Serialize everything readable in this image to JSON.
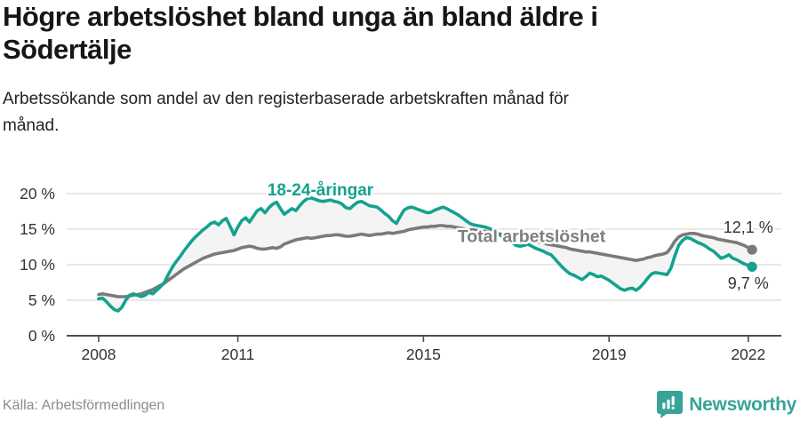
{
  "header": {
    "title_lines": [
      "Högre arbetslöshet bland unga än bland äldre i",
      "Södertälje"
    ],
    "subtitle_lines": [
      "Arbetssökande som andel av den registerbaserade arbetskraften månad för",
      "månad."
    ]
  },
  "footer": {
    "source": "Källa: Arbetsförmedlingen",
    "brand_name": "Newsworthy"
  },
  "colors": {
    "young_series": "#14a28e",
    "total_series": "#7a7a7a",
    "total_label": "#7f7f82",
    "value_label": "#333333",
    "grid": "#dadada",
    "axis": "#4d4d4d",
    "axis_text": "#333333",
    "fill_between": "#f4f4f4",
    "brand_teal": "#38a39a",
    "background": "#ffffff"
  },
  "chart_data": {
    "type": "line",
    "title": "Högre arbetslöshet bland unga än bland äldre i Södertälje",
    "subtitle": "Arbetssökande som andel av den registerbaserade arbetskraften månad för månad.",
    "x_start_year": 2008.0,
    "x_step_years": 0.08333,
    "xlim": [
      2007.6,
      2022.75
    ],
    "ylim": [
      0,
      22.9
    ],
    "grid": true,
    "x_ticks": [
      {
        "value": 2008,
        "label": "2008"
      },
      {
        "value": 2011,
        "label": "2011"
      },
      {
        "value": 2015,
        "label": "2015"
      },
      {
        "value": 2019,
        "label": "2019"
      },
      {
        "value": 2022,
        "label": "2022"
      }
    ],
    "y_ticks": [
      {
        "value": 0,
        "label": "0 %"
      },
      {
        "value": 5,
        "label": "5 %"
      },
      {
        "value": 10,
        "label": "10 %"
      },
      {
        "value": 15,
        "label": "15 %"
      },
      {
        "value": 20,
        "label": "20 %"
      }
    ],
    "series": [
      {
        "name": "18-24-åringar",
        "color": "#14a28e",
        "end_value_label": "9,7 %",
        "values": [
          5.2,
          5.3,
          4.8,
          4.2,
          3.7,
          3.5,
          4.0,
          5.0,
          5.7,
          5.9,
          5.7,
          5.5,
          5.7,
          6.1,
          5.9,
          6.4,
          6.9,
          7.5,
          8.6,
          9.6,
          10.4,
          11.1,
          11.9,
          12.6,
          13.3,
          13.9,
          14.4,
          14.9,
          15.3,
          15.8,
          16.0,
          15.6,
          16.2,
          16.5,
          15.4,
          14.2,
          15.3,
          16.2,
          16.6,
          16.0,
          16.8,
          17.6,
          17.9,
          17.3,
          18.0,
          18.5,
          18.8,
          17.9,
          17.1,
          17.5,
          17.9,
          17.6,
          18.3,
          18.9,
          19.3,
          19.4,
          19.2,
          19.0,
          18.9,
          19.0,
          19.1,
          18.9,
          18.8,
          18.5,
          18.0,
          17.9,
          18.4,
          18.8,
          18.9,
          18.6,
          18.3,
          18.2,
          18.1,
          17.7,
          17.2,
          16.8,
          16.2,
          15.8,
          16.8,
          17.7,
          18.0,
          18.1,
          17.9,
          17.7,
          17.5,
          17.3,
          17.4,
          17.7,
          17.9,
          18.1,
          17.9,
          17.6,
          17.3,
          17.0,
          16.6,
          16.2,
          15.8,
          15.6,
          15.5,
          15.4,
          15.3,
          15.1,
          14.9,
          14.5,
          14.1,
          13.8,
          13.5,
          13.1,
          12.7,
          12.6,
          12.7,
          12.9,
          12.6,
          12.3,
          12.1,
          11.9,
          11.6,
          11.4,
          10.8,
          10.2,
          9.6,
          9.1,
          8.7,
          8.5,
          8.2,
          7.9,
          8.3,
          8.8,
          8.6,
          8.3,
          8.4,
          8.1,
          7.8,
          7.4,
          7.0,
          6.6,
          6.4,
          6.6,
          6.7,
          6.4,
          6.8,
          7.4,
          8.1,
          8.7,
          8.9,
          8.8,
          8.7,
          8.6,
          9.5,
          11.2,
          12.7,
          13.4,
          13.8,
          13.7,
          13.4,
          13.1,
          12.9,
          12.6,
          12.2,
          11.9,
          11.4,
          10.9,
          11.1,
          11.4,
          10.9,
          10.7,
          10.4,
          10.1,
          9.9,
          9.7
        ]
      },
      {
        "name": "Total arbetslöshet",
        "color": "#7a7a7a",
        "end_value_label": "12,1 %",
        "values": [
          5.8,
          5.9,
          5.8,
          5.7,
          5.6,
          5.5,
          5.5,
          5.5,
          5.6,
          5.7,
          5.8,
          5.9,
          6.1,
          6.3,
          6.5,
          6.8,
          7.1,
          7.4,
          7.8,
          8.2,
          8.6,
          9.0,
          9.4,
          9.7,
          10.0,
          10.3,
          10.6,
          10.9,
          11.1,
          11.3,
          11.5,
          11.6,
          11.7,
          11.8,
          11.9,
          12.0,
          12.2,
          12.4,
          12.5,
          12.6,
          12.5,
          12.3,
          12.2,
          12.2,
          12.3,
          12.4,
          12.3,
          12.5,
          12.9,
          13.1,
          13.3,
          13.5,
          13.6,
          13.7,
          13.8,
          13.7,
          13.8,
          13.9,
          14.0,
          14.1,
          14.1,
          14.2,
          14.2,
          14.1,
          14.0,
          14.0,
          14.1,
          14.2,
          14.3,
          14.2,
          14.1,
          14.2,
          14.3,
          14.3,
          14.4,
          14.5,
          14.4,
          14.5,
          14.6,
          14.7,
          14.9,
          15.0,
          15.1,
          15.2,
          15.3,
          15.3,
          15.4,
          15.4,
          15.5,
          15.5,
          15.4,
          15.4,
          15.3,
          15.2,
          15.1,
          15.0,
          14.9,
          14.9,
          14.8,
          14.8,
          14.7,
          14.6,
          14.5,
          14.4,
          14.3,
          14.2,
          14.1,
          14.0,
          13.9,
          13.8,
          13.7,
          13.6,
          13.4,
          13.3,
          13.2,
          13.1,
          12.9,
          12.8,
          12.7,
          12.6,
          12.5,
          12.4,
          12.2,
          12.1,
          12.0,
          11.9,
          11.8,
          11.8,
          11.7,
          11.6,
          11.5,
          11.4,
          11.3,
          11.2,
          11.1,
          11.0,
          10.9,
          10.8,
          10.7,
          10.6,
          10.7,
          10.8,
          11.0,
          11.1,
          11.3,
          11.4,
          11.5,
          11.7,
          12.4,
          13.3,
          13.9,
          14.2,
          14.3,
          14.4,
          14.4,
          14.3,
          14.1,
          14.0,
          13.9,
          13.8,
          13.6,
          13.5,
          13.4,
          13.3,
          13.2,
          13.1,
          12.9,
          12.7,
          12.4,
          12.1
        ]
      }
    ],
    "annotations": [
      {
        "id": "label-young",
        "text": "18-24-åringar",
        "x": 2012.78,
        "y": 19.75,
        "color": "#14a28e",
        "size": 19,
        "bold": true
      },
      {
        "id": "label-total",
        "text": "Total arbetslöshet",
        "x": 2017.33,
        "y": 13.2,
        "color": "#7f7f82",
        "size": 19.5,
        "bold": true
      },
      {
        "id": "label-end-total",
        "text": "12,1 %",
        "x": 2022.0,
        "y": 14.5,
        "color": "#333333",
        "size": 18,
        "bold": false
      },
      {
        "id": "label-end-young",
        "text": "9,7 %",
        "x": 2022.0,
        "y": 6.6,
        "color": "#333333",
        "size": 18,
        "bold": false
      }
    ],
    "legend_position": "inline-labels"
  }
}
